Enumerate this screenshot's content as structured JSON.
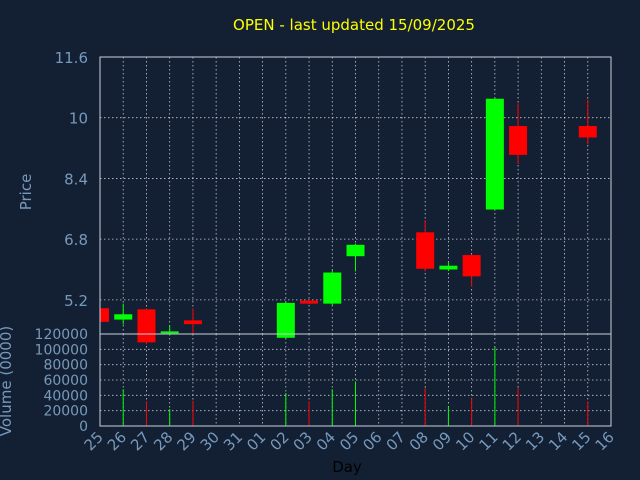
{
  "chart_data": {
    "type": "candlestick",
    "title": "OPEN - last updated 15/09/2025",
    "xlabel": "Day",
    "price_panel": {
      "ylabel": "Price",
      "ylim": [
        4.3,
        11.6
      ],
      "yticks": [
        5.2,
        6.8,
        8.4,
        10,
        11.6
      ],
      "grid": true
    },
    "volume_panel": {
      "ylabel": "Volume (0000)",
      "ylim": [
        0,
        120000
      ],
      "yticks": [
        0,
        20000,
        40000,
        60000,
        80000,
        100000,
        120000
      ],
      "grid": true
    },
    "x_tick_labels": [
      "25",
      "26",
      "27",
      "28",
      "29",
      "30",
      "31",
      "01",
      "02",
      "03",
      "04",
      "05",
      "06",
      "07",
      "08",
      "09",
      "10",
      "11",
      "12",
      "13",
      "14",
      "15",
      "16"
    ],
    "candles": [
      {
        "day": "25",
        "open": 4.98,
        "high": 5.05,
        "low": 4.6,
        "close": 4.62,
        "volume": 0
      },
      {
        "day": "26",
        "open": 4.68,
        "high": 5.1,
        "low": 4.55,
        "close": 4.82,
        "volume": 48000
      },
      {
        "day": "27",
        "open": 4.95,
        "high": 4.98,
        "low": 4.03,
        "close": 4.08,
        "volume": 32000
      },
      {
        "day": "28",
        "open": 4.32,
        "high": 4.52,
        "low": 4.26,
        "close": 4.37,
        "volume": 22000
      },
      {
        "day": "29",
        "open": 4.66,
        "high": 4.98,
        "low": 4.3,
        "close": 4.56,
        "volume": 33000
      },
      {
        "day": "02",
        "open": 4.2,
        "high": 5.15,
        "low": 4.17,
        "close": 5.12,
        "volume": 43000
      },
      {
        "day": "03",
        "open": 5.18,
        "high": 5.2,
        "low": 5.08,
        "close": 5.1,
        "volume": 32000
      },
      {
        "day": "04",
        "open": 5.1,
        "high": 5.98,
        "low": 5.05,
        "close": 5.92,
        "volume": 48000
      },
      {
        "day": "05",
        "open": 6.35,
        "high": 6.68,
        "low": 5.95,
        "close": 6.65,
        "volume": 58000
      },
      {
        "day": "08",
        "open": 6.98,
        "high": 7.3,
        "low": 5.95,
        "close": 6.02,
        "volume": 50000
      },
      {
        "day": "09",
        "open": 6.0,
        "high": 6.18,
        "low": 5.96,
        "close": 6.1,
        "volume": 25000
      },
      {
        "day": "10",
        "open": 6.38,
        "high": 6.4,
        "low": 5.55,
        "close": 5.82,
        "volume": 36000
      },
      {
        "day": "11",
        "open": 7.58,
        "high": 10.52,
        "low": 7.55,
        "close": 10.5,
        "volume": 103000
      },
      {
        "day": "12",
        "open": 9.78,
        "high": 10.38,
        "low": 8.78,
        "close": 9.02,
        "volume": 50000
      },
      {
        "day": "15",
        "open": 9.78,
        "high": 10.48,
        "low": 9.3,
        "close": 9.48,
        "volume": 32000
      }
    ],
    "colors": {
      "background": "#132033",
      "up": "#00ff00",
      "down": "#ff0000",
      "title": "#ffff00",
      "axis_text": "#7799bb",
      "grid": "#ffffff"
    }
  }
}
